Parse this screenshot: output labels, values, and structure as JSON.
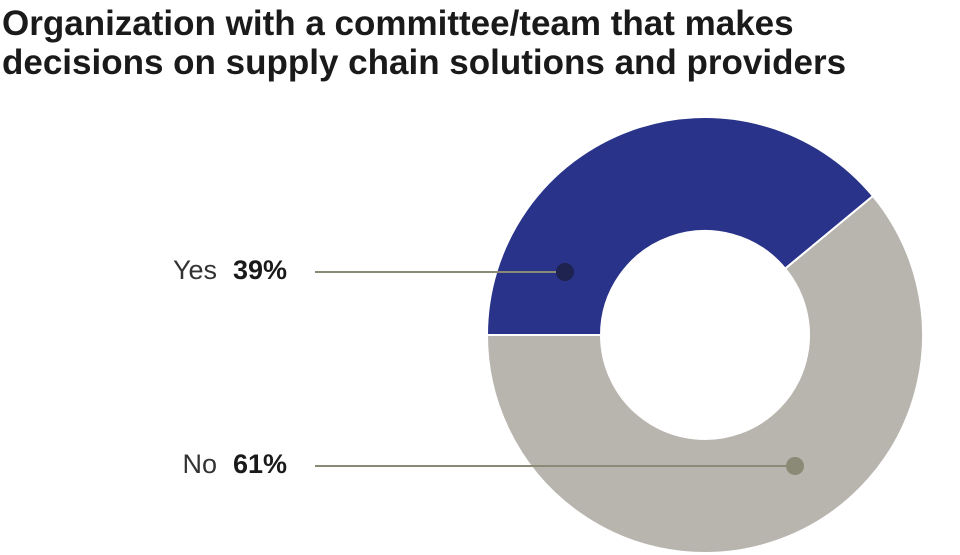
{
  "chart_data": {
    "type": "pie",
    "donut": true,
    "title": [
      "Organization with a committee/team that makes",
      "decisions on supply chain solutions and providers"
    ],
    "categories": [
      "Yes",
      "No"
    ],
    "values": [
      39,
      61
    ],
    "value_labels": [
      "39%",
      "61%"
    ],
    "colors": [
      "#283389",
      "#b8b4ae"
    ],
    "dot_colors": [
      "#1f2350",
      "#8a8a76"
    ]
  }
}
